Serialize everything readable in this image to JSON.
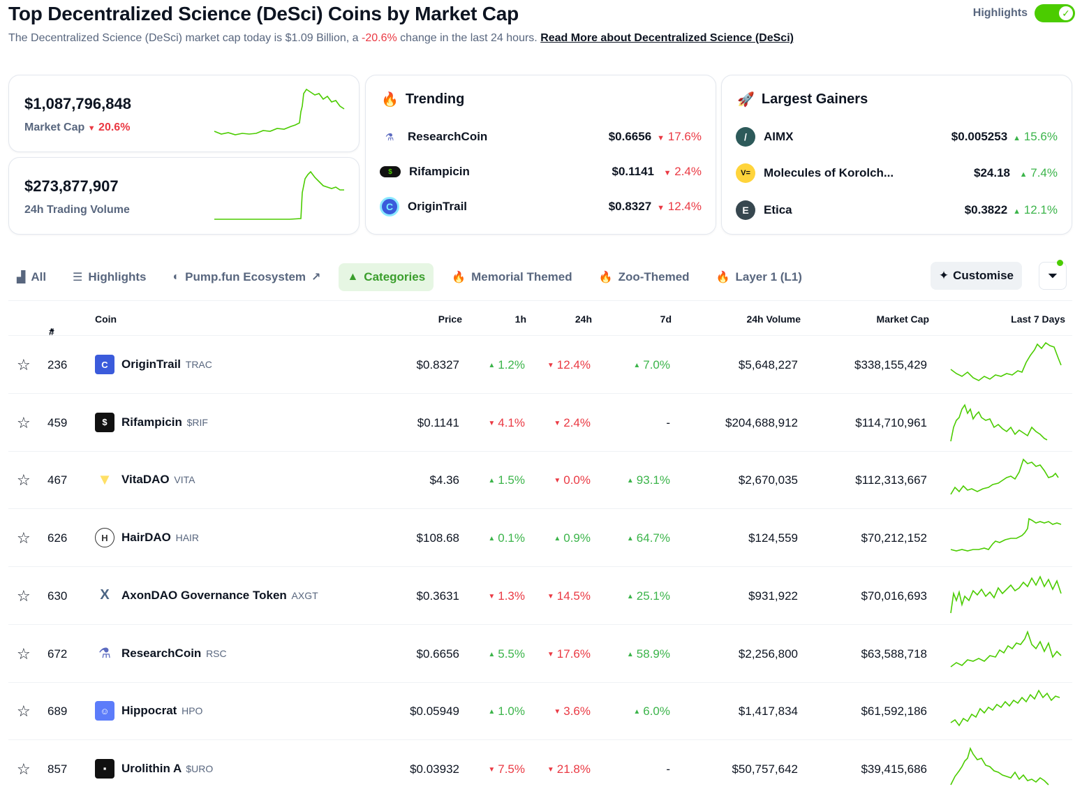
{
  "header": {
    "title": "Top Decentralized Science (DeSci) Coins by Market Cap",
    "subtitle_pre": "The Decentralized Science (DeSci) market cap today is $1.09 Billion, a ",
    "subtitle_change": "-20.6%",
    "subtitle_post": " change in the last 24 hours. ",
    "read_more": "Read More about Decentralized Science (DeSci)",
    "highlights_label": "Highlights"
  },
  "stats": {
    "market_cap_value": "$1,087,796,848",
    "market_cap_label": "Market Cap",
    "market_cap_change": "20.6%",
    "volume_value": "$273,877,907",
    "volume_label": "24h Trading Volume"
  },
  "trending": {
    "title": "Trending",
    "items": [
      {
        "name": "ResearchCoin",
        "price": "$0.6656",
        "change": "17.6%",
        "dir": "down"
      },
      {
        "name": "Rifampicin",
        "price": "$0.1141",
        "change": "2.4%",
        "dir": "down"
      },
      {
        "name": "OriginTrail",
        "price": "$0.8327",
        "change": "12.4%",
        "dir": "down"
      }
    ]
  },
  "gainers": {
    "title": "Largest Gainers",
    "items": [
      {
        "name": "AIMX",
        "price": "$0.005253",
        "change": "15.6%",
        "dir": "up"
      },
      {
        "name": "Molecules of Korolch...",
        "price": "$24.18",
        "change": "7.4%",
        "dir": "up"
      },
      {
        "name": "Etica",
        "price": "$0.3822",
        "change": "12.1%",
        "dir": "up"
      }
    ]
  },
  "tabs": [
    {
      "label": "All",
      "icon": "bar-chart-icon"
    },
    {
      "label": "Highlights",
      "icon": "list-icon"
    },
    {
      "label": "Pump.fun Ecosystem",
      "icon": "pill-icon"
    },
    {
      "label": "Categories",
      "icon": "shapes-icon"
    },
    {
      "label": "Memorial Themed",
      "icon": "flame-icon"
    },
    {
      "label": "Zoo-Themed",
      "icon": "flame-icon"
    },
    {
      "label": "Layer 1 (L1)",
      "icon": "flame-icon"
    }
  ],
  "customise_label": "Customise",
  "table": {
    "headers": {
      "rank": "#",
      "coin": "Coin",
      "price": "Price",
      "h1": "1h",
      "h24": "24h",
      "d7": "7d",
      "volume": "24h Volume",
      "mcap": "Market Cap",
      "last7": "Last 7 Days"
    },
    "rows": [
      {
        "rank": "236",
        "name": "OriginTrail",
        "symbol": "TRAC",
        "price": "$0.8327",
        "h1": "1.2%",
        "h1d": "up",
        "h24": "12.4%",
        "h24d": "down",
        "d7": "7.0%",
        "d7d": "up",
        "volume": "$5,648,227",
        "mcap": "$338,155,429",
        "icon_color": "#3b5bdb"
      },
      {
        "rank": "459",
        "name": "Rifampicin",
        "symbol": "$RIF",
        "price": "$0.1141",
        "h1": "4.1%",
        "h1d": "down",
        "h24": "2.4%",
        "h24d": "down",
        "d7": "-",
        "d7d": "none",
        "volume": "$204,688,912",
        "mcap": "$114,710,961",
        "icon_color": "#111111"
      },
      {
        "rank": "467",
        "name": "VitaDAO",
        "symbol": "VITA",
        "price": "$4.36",
        "h1": "1.5%",
        "h1d": "up",
        "h24": "0.0%",
        "h24d": "down",
        "d7": "93.1%",
        "d7d": "up",
        "volume": "$2,670,035",
        "mcap": "$112,313,667",
        "icon_color": "#ffe066"
      },
      {
        "rank": "626",
        "name": "HairDAO",
        "symbol": "HAIR",
        "price": "$108.68",
        "h1": "0.1%",
        "h1d": "up",
        "h24": "0.9%",
        "h24d": "up",
        "d7": "64.7%",
        "d7d": "up",
        "volume": "$124,559",
        "mcap": "$70,212,152",
        "icon_color": "#ffffff"
      },
      {
        "rank": "630",
        "name": "AxonDAO Governance Token",
        "symbol": "AXGT",
        "price": "$0.3631",
        "h1": "1.3%",
        "h1d": "down",
        "h24": "14.5%",
        "h24d": "down",
        "d7": "25.1%",
        "d7d": "up",
        "volume": "$931,922",
        "mcap": "$70,016,693",
        "icon_color": "#4b6584"
      },
      {
        "rank": "672",
        "name": "ResearchCoin",
        "symbol": "RSC",
        "price": "$0.6656",
        "h1": "5.5%",
        "h1d": "up",
        "h24": "17.6%",
        "h24d": "down",
        "d7": "58.9%",
        "d7d": "up",
        "volume": "$2,256,800",
        "mcap": "$63,588,718",
        "icon_color": "#5c6bc0"
      },
      {
        "rank": "689",
        "name": "Hippocrat",
        "symbol": "HPO",
        "price": "$0.05949",
        "h1": "1.0%",
        "h1d": "up",
        "h24": "3.6%",
        "h24d": "down",
        "d7": "6.0%",
        "d7d": "up",
        "volume": "$1,417,834",
        "mcap": "$61,592,186",
        "icon_color": "#5c7cfa"
      },
      {
        "rank": "857",
        "name": "Urolithin A",
        "symbol": "$URO",
        "price": "$0.03932",
        "h1": "7.5%",
        "h1d": "down",
        "h24": "21.8%",
        "h24d": "down",
        "d7": "-",
        "d7d": "none",
        "volume": "$50,757,642",
        "mcap": "$39,415,686",
        "icon_color": "#111111"
      }
    ]
  },
  "colors": {
    "positive": "#16c784",
    "negative": "#ea3943",
    "spark": "#4bcc00"
  }
}
